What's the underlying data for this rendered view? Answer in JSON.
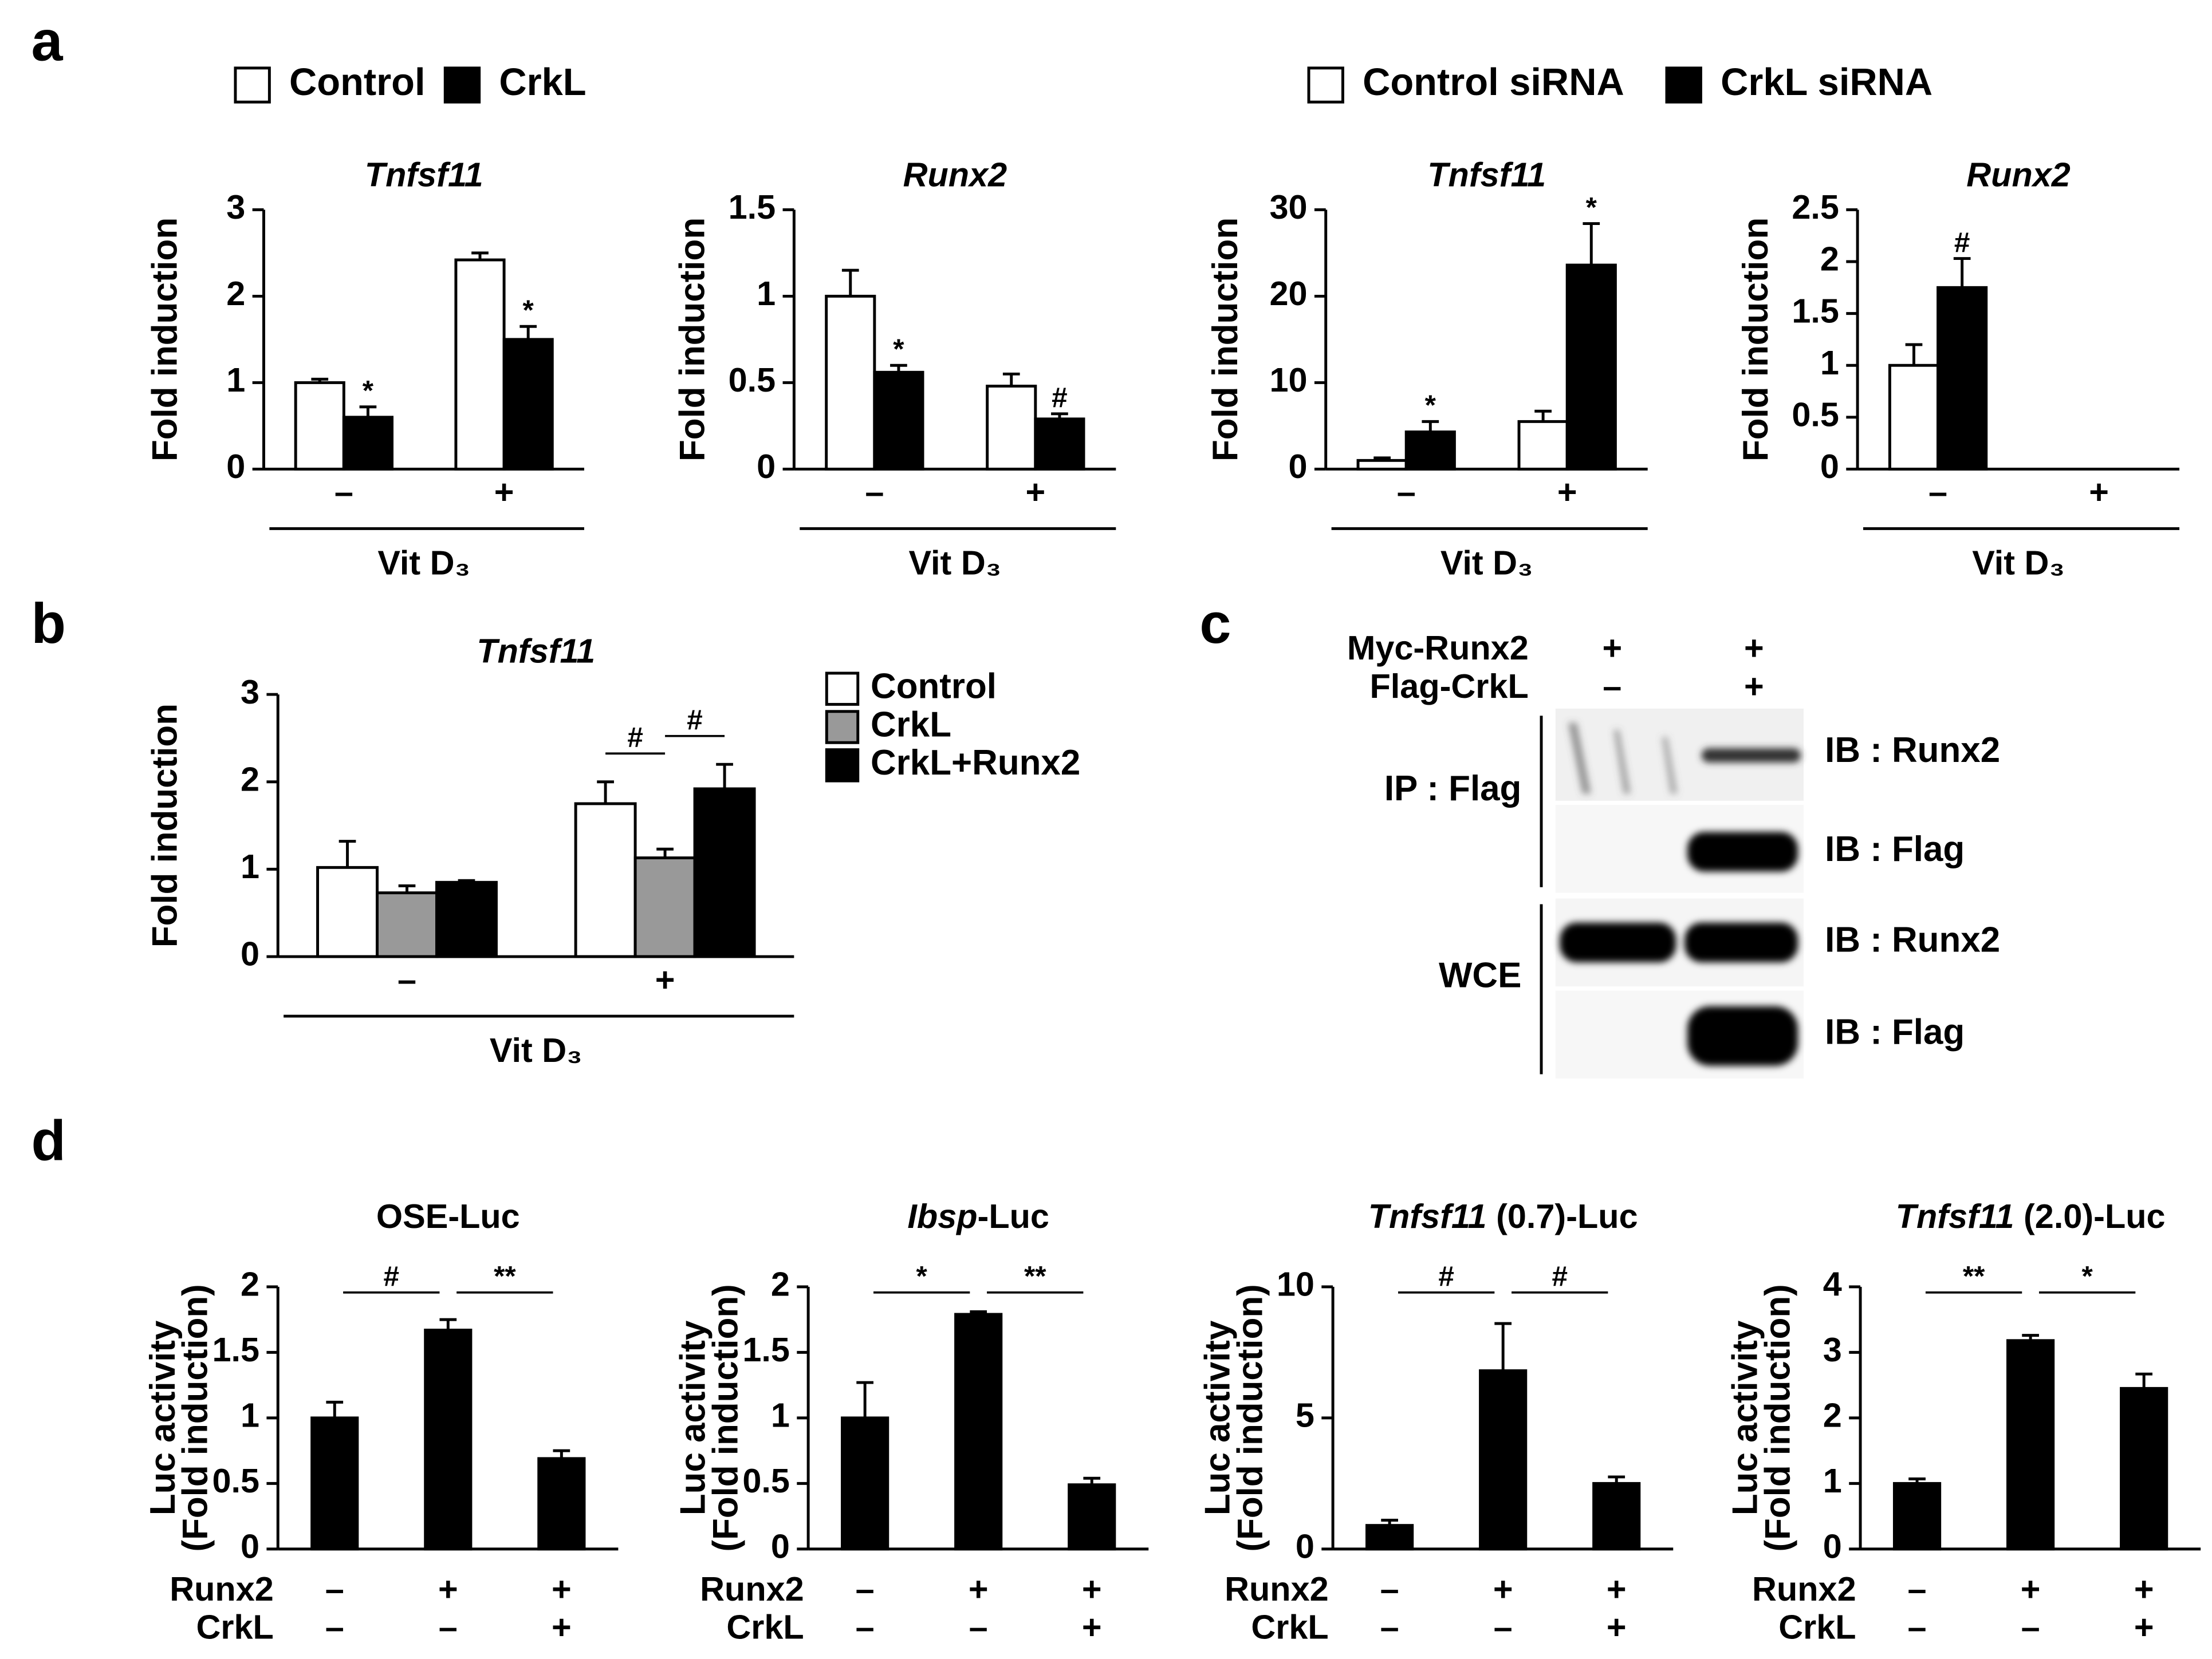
{
  "panels": [
    "a",
    "b",
    "c",
    "d"
  ],
  "chart_data": [
    {
      "type": "bar",
      "title": [
        {
          "text": "Tnfsf11",
          "italic": true
        }
      ],
      "ylabel": [
        "Fold induction"
      ],
      "categories": [
        "–",
        "+"
      ],
      "xlabel": "Vit D₃",
      "ylim": [
        0,
        3
      ],
      "yticks": [
        0,
        1,
        2,
        3
      ],
      "series": [
        {
          "name": "Control",
          "color": "#ffffff",
          "values": [
            1.0,
            2.42
          ],
          "errors": [
            0.04,
            0.08
          ],
          "sig": [
            null,
            null
          ]
        },
        {
          "name": "CrkL",
          "color": "#000000",
          "values": [
            0.6,
            1.5
          ],
          "errors": [
            0.12,
            0.15
          ],
          "sig": [
            "*",
            "*"
          ]
        }
      ]
    },
    {
      "type": "bar",
      "title": [
        {
          "text": "Runx2",
          "italic": true
        }
      ],
      "ylabel": [
        "Fold induction"
      ],
      "categories": [
        "–",
        "+"
      ],
      "xlabel": "Vit D₃",
      "ylim": [
        0,
        1.5
      ],
      "yticks": [
        0,
        0.5,
        1,
        1.5
      ],
      "series": [
        {
          "color": "#ffffff",
          "values": [
            1.0,
            0.48
          ],
          "errors": [
            0.15,
            0.07
          ],
          "sig": [
            null,
            null
          ]
        },
        {
          "color": "#000000",
          "values": [
            0.56,
            0.29
          ],
          "errors": [
            0.04,
            0.03
          ],
          "sig": [
            "*",
            "#"
          ]
        }
      ]
    },
    {
      "type": "bar",
      "title": [
        {
          "text": "Tnfsf11",
          "italic": true
        }
      ],
      "ylabel": [
        "Fold induction"
      ],
      "categories": [
        "–",
        "+"
      ],
      "xlabel": "Vit D₃",
      "ylim": [
        0,
        30
      ],
      "yticks": [
        0,
        10,
        20,
        30
      ],
      "series": [
        {
          "name": "Control siRNA",
          "color": "#ffffff",
          "values": [
            1.0,
            5.5
          ],
          "errors": [
            0.3,
            1.2
          ],
          "sig": [
            null,
            null
          ]
        },
        {
          "name": "CrkL siRNA",
          "color": "#000000",
          "values": [
            4.3,
            23.6
          ],
          "errors": [
            1.2,
            4.8
          ],
          "sig": [
            "*",
            "*"
          ]
        }
      ]
    },
    {
      "type": "bar",
      "title": [
        {
          "text": "Runx2",
          "italic": true
        }
      ],
      "ylabel": [
        "Fold induction"
      ],
      "categories": [
        "–",
        "+"
      ],
      "xlabel": "Vit D₃",
      "ylim": [
        0,
        2.5
      ],
      "yticks": [
        0,
        0.5,
        1,
        1.5,
        2,
        2.5
      ],
      "series": [
        {
          "color": "#ffffff",
          "values": [
            1.0,
            null
          ],
          "errors": [
            0.2,
            null
          ],
          "sig": [
            null,
            null
          ]
        },
        {
          "color": "#000000",
          "values": [
            1.75,
            null
          ],
          "errors": [
            0.28,
            null
          ],
          "sig": [
            "#",
            null
          ]
        }
      ]
    },
    {
      "type": "bar",
      "title": [
        {
          "text": "Tnfsf11",
          "italic": true
        }
      ],
      "ylabel": [
        "Fold induction"
      ],
      "categories": [
        "–",
        "+"
      ],
      "xlabel": "Vit D₃",
      "ylim": [
        0,
        3
      ],
      "yticks": [
        0,
        1,
        2,
        3
      ],
      "series": [
        {
          "name": "Control",
          "color": "#ffffff",
          "values": [
            1.02,
            1.75
          ],
          "errors": [
            0.3,
            0.25
          ]
        },
        {
          "name": "CrkL",
          "color": "#999999",
          "values": [
            0.73,
            1.13
          ],
          "errors": [
            0.08,
            0.1
          ]
        },
        {
          "name": "CrkL+Runx2",
          "color": "#000000",
          "values": [
            0.85,
            1.92
          ],
          "errors": [
            0.02,
            0.28
          ]
        }
      ],
      "brackets": [
        {
          "text": "#",
          "category": 1,
          "from": 0,
          "to": 1
        },
        {
          "text": "#",
          "category": 1,
          "from": 1,
          "to": 2
        }
      ]
    },
    {
      "type": "bar",
      "title": [
        {
          "text": "OSE-Luc"
        }
      ],
      "ylabel": [
        "Luc activity",
        "(Fold induction)"
      ],
      "conditions": [
        {
          "name": "Runx2",
          "values": [
            "–",
            "+",
            "+"
          ]
        },
        {
          "name": "CrkL",
          "values": [
            "–",
            "–",
            "+"
          ]
        }
      ],
      "ylim": [
        0,
        2
      ],
      "yticks": [
        0,
        0.5,
        1,
        1.5,
        2
      ],
      "series": [
        {
          "color": "#000000",
          "values": [
            1.0,
            1.67,
            0.69
          ],
          "errors": [
            0.12,
            0.08,
            0.06
          ]
        }
      ],
      "brackets": [
        {
          "text": "#",
          "from": 0,
          "to": 1
        },
        {
          "text": "**",
          "from": 1,
          "to": 2
        }
      ]
    },
    {
      "type": "bar",
      "title": [
        {
          "text": "Ibsp",
          "italic": true
        },
        {
          "text": "-Luc"
        }
      ],
      "ylabel": [
        "Luc activity",
        "(Fold induction)"
      ],
      "conditions": [
        {
          "name": "Runx2",
          "values": [
            "–",
            "+",
            "+"
          ]
        },
        {
          "name": "CrkL",
          "values": [
            "–",
            "–",
            "+"
          ]
        }
      ],
      "ylim": [
        0,
        2
      ],
      "yticks": [
        0,
        0.5,
        1,
        1.5,
        2
      ],
      "series": [
        {
          "color": "#000000",
          "values": [
            1.0,
            1.79,
            0.49
          ],
          "errors": [
            0.27,
            0.02,
            0.05
          ]
        }
      ],
      "brackets": [
        {
          "text": "*",
          "from": 0,
          "to": 1
        },
        {
          "text": "**",
          "from": 1,
          "to": 2
        }
      ]
    },
    {
      "type": "bar",
      "title": [
        {
          "text": "Tnfsf11",
          "italic": true
        },
        {
          "text": " (0.7)-Luc"
        }
      ],
      "ylabel": [
        "Luc activity",
        "(Fold induction)"
      ],
      "conditions": [
        {
          "name": "Runx2",
          "values": [
            "–",
            "+",
            "+"
          ]
        },
        {
          "name": "CrkL",
          "values": [
            "–",
            "–",
            "+"
          ]
        }
      ],
      "ylim": [
        0,
        10
      ],
      "yticks": [
        0,
        5,
        10
      ],
      "series": [
        {
          "color": "#000000",
          "values": [
            0.9,
            6.8,
            2.5
          ],
          "errors": [
            0.2,
            1.8,
            0.25
          ]
        }
      ],
      "brackets": [
        {
          "text": "#",
          "from": 0,
          "to": 1
        },
        {
          "text": "#",
          "from": 1,
          "to": 2
        }
      ]
    },
    {
      "type": "bar",
      "title": [
        {
          "text": "Tnfsf11",
          "italic": true
        },
        {
          "text": " (2.0)-Luc"
        }
      ],
      "ylabel": [
        "Luc activity",
        "(Fold induction)"
      ],
      "conditions": [
        {
          "name": "Runx2",
          "values": [
            "–",
            "+",
            "+"
          ]
        },
        {
          "name": "CrkL",
          "values": [
            "–",
            "–",
            "+"
          ]
        }
      ],
      "ylim": [
        0,
        4
      ],
      "yticks": [
        0,
        1,
        2,
        3,
        4
      ],
      "series": [
        {
          "color": "#000000",
          "values": [
            1.0,
            3.18,
            2.45
          ],
          "errors": [
            0.07,
            0.08,
            0.22
          ]
        }
      ],
      "brackets": [
        {
          "text": "**",
          "from": 0,
          "to": 1
        },
        {
          "text": "*",
          "from": 1,
          "to": 2
        }
      ]
    }
  ],
  "blot": {
    "columns": [
      {
        "name": "Myc-Runx2",
        "values": [
          "+",
          "+"
        ]
      },
      {
        "name": "Flag-CrkL",
        "values": [
          "–",
          "+"
        ]
      }
    ],
    "groups": [
      {
        "label": "IP : Flag",
        "rows": [
          "IB : Runx2",
          "IB : Flag"
        ]
      },
      {
        "label": "WCE",
        "rows": [
          "IB : Runx2",
          "IB : Flag"
        ]
      }
    ]
  }
}
